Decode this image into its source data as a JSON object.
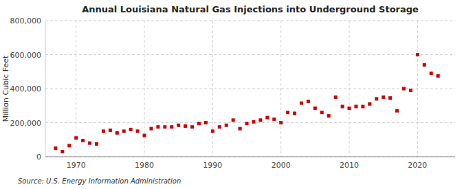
{
  "chart_data": {
    "type": "scatter",
    "title": "Annual Louisiana Natural Gas Injections into Underground Storage",
    "ylabel": "Million Cubic Feet",
    "annotations": [
      "Source: U.S. Energy Information Administration"
    ],
    "color": "#cc0000",
    "marker": "square",
    "grid": true,
    "x": [
      1967,
      1968,
      1969,
      1970,
      1971,
      1972,
      1973,
      1974,
      1975,
      1976,
      1977,
      1978,
      1979,
      1980,
      1981,
      1982,
      1983,
      1984,
      1985,
      1986,
      1987,
      1988,
      1989,
      1990,
      1991,
      1992,
      1993,
      1994,
      1995,
      1996,
      1997,
      1998,
      1999,
      2000,
      2001,
      2002,
      2003,
      2004,
      2005,
      2006,
      2007,
      2008,
      2009,
      2010,
      2011,
      2012,
      2013,
      2014,
      2015,
      2016,
      2017,
      2018,
      2019,
      2020,
      2021,
      2022,
      2023
    ],
    "values": [
      50000,
      30000,
      65000,
      110000,
      95000,
      80000,
      75000,
      150000,
      155000,
      140000,
      150000,
      160000,
      150000,
      125000,
      165000,
      175000,
      175000,
      175000,
      185000,
      180000,
      175000,
      195000,
      200000,
      150000,
      175000,
      185000,
      215000,
      165000,
      195000,
      205000,
      215000,
      230000,
      220000,
      200000,
      260000,
      255000,
      315000,
      325000,
      285000,
      260000,
      240000,
      350000,
      295000,
      285000,
      295000,
      295000,
      310000,
      340000,
      350000,
      345000,
      270000,
      400000,
      390000,
      600000,
      540000,
      490000,
      475000
    ],
    "xlim": [
      1965.5,
      2025.5
    ],
    "xticks": [
      1970,
      1980,
      1990,
      2000,
      2010,
      2020
    ],
    "ylim": [
      0,
      800000
    ],
    "yticks": [
      0,
      {
        "value": 200000,
        "label": "200,000"
      },
      {
        "value": 400000,
        "label": "400,000"
      },
      {
        "value": 600000,
        "label": "600,000"
      },
      {
        "value": 800000,
        "label": "800,000"
      }
    ]
  }
}
